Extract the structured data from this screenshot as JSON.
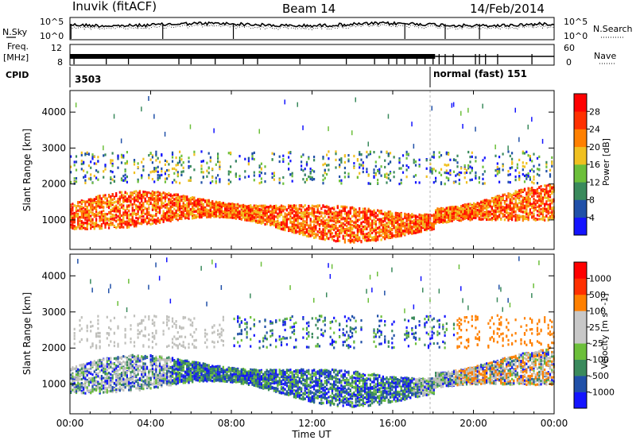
{
  "header": {
    "station": "Inuvik (fitACF)",
    "beam": "Beam 14",
    "date": "14/Feb/2014"
  },
  "side_labels": {
    "nsky": "N.Sky",
    "nsearch": "N.Search",
    "freq_line1": "Freq.",
    "freq_line2": "[MHz]",
    "nave": "Nave",
    "cpid": "CPID"
  },
  "noise_panel": {
    "left_ticks": [
      "10^5",
      "10^0"
    ],
    "right_ticks": [
      "10^5",
      "10^0"
    ]
  },
  "freq_panel": {
    "left_ticks": [
      "12",
      "8"
    ],
    "right_ticks": [
      "60",
      "0"
    ]
  },
  "cpid_segments": [
    {
      "label": "3503"
    },
    {
      "label": "normal (fast) 151"
    }
  ],
  "colors": {
    "power_scale": [
      "#1414ff",
      "#2050a8",
      "#3a8a5c",
      "#6cbf3a",
      "#f0c020",
      "#ff8000",
      "#ff3000",
      "#ff0000"
    ],
    "velocity_scale": [
      "#1414ff",
      "#2050a8",
      "#3a8a5c",
      "#6cbf3a",
      "#c8c8c8",
      "#c8c8c8",
      "#ff8000",
      "#ff3000",
      "#ff0000"
    ],
    "ground_scatter": "#c0c0bc"
  },
  "chart_data": {
    "type": "heatmap",
    "xlabel": "Time UT",
    "x_ticks": [
      "00:00",
      "04:00",
      "08:00",
      "12:00",
      "16:00",
      "20:00",
      "00:00"
    ],
    "xlim_hours": [
      0,
      24
    ],
    "panels": [
      {
        "name": "power",
        "ylabel": "Slant Range [km]",
        "ylim": [
          180,
          4600
        ],
        "y_ticks": [
          1000,
          2000,
          3000,
          4000
        ],
        "colorbar_label": "Power [dB]",
        "colorbar_ticks": [
          "28",
          "24",
          "20",
          "16",
          "12",
          "8",
          "4"
        ],
        "colorbar_range": [
          0,
          32
        ]
      },
      {
        "name": "velocity",
        "ylabel": "Slant Range [km]",
        "ylim": [
          180,
          4600
        ],
        "y_ticks": [
          1000,
          2000,
          3000,
          4000
        ],
        "colorbar_label": "Velocity [m s^-1]",
        "colorbar_ticks": [
          "1000",
          "500",
          "100",
          "25",
          "-25",
          "-100",
          "-500",
          "-1000"
        ]
      }
    ],
    "mode_change_hour": 18.1
  }
}
